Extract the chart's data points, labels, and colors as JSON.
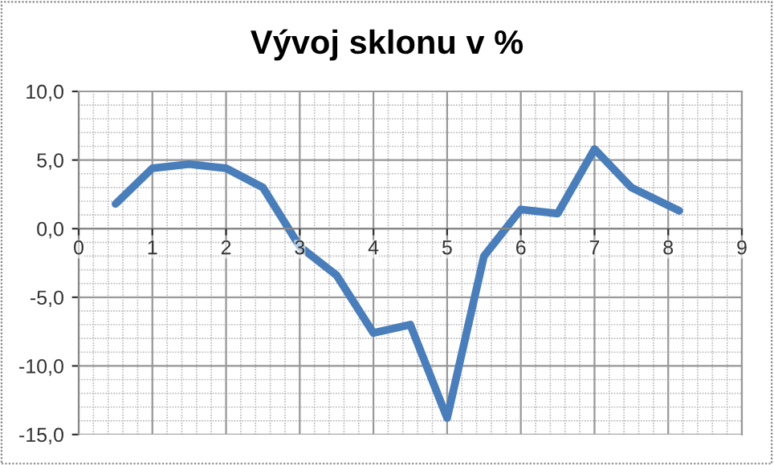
{
  "chart_data": {
    "type": "line",
    "title": "Vývoj sklonu v %",
    "x": [
      0.5,
      1,
      1.5,
      2,
      2.5,
      3,
      3.5,
      4,
      4.5,
      5,
      5.5,
      6,
      6.5,
      7,
      7.5,
      8.15
    ],
    "series": [
      {
        "color": "#4a7ebb",
        "values": [
          1.8,
          4.4,
          4.7,
          4.4,
          3.0,
          -1.3,
          -3.4,
          -7.6,
          -7.0,
          -13.8,
          -2.0,
          1.4,
          1.1,
          5.8,
          3.0,
          1.3
        ]
      }
    ],
    "xlim": [
      0,
      9
    ],
    "xticks": [
      0,
      1,
      2,
      3,
      4,
      5,
      6,
      7,
      8,
      9
    ],
    "ylim": [
      -15,
      10
    ],
    "yticks": [
      {
        "value": -15,
        "label": "-15,0"
      },
      {
        "value": -10,
        "label": "-10,0"
      },
      {
        "value": -5,
        "label": "-5,0"
      },
      {
        "value": 0,
        "label": "0,0"
      },
      {
        "value": 5,
        "label": "5,0"
      },
      {
        "value": 10,
        "label": "10,0"
      }
    ],
    "grid": true,
    "marker": "none",
    "line_style": "solid"
  }
}
